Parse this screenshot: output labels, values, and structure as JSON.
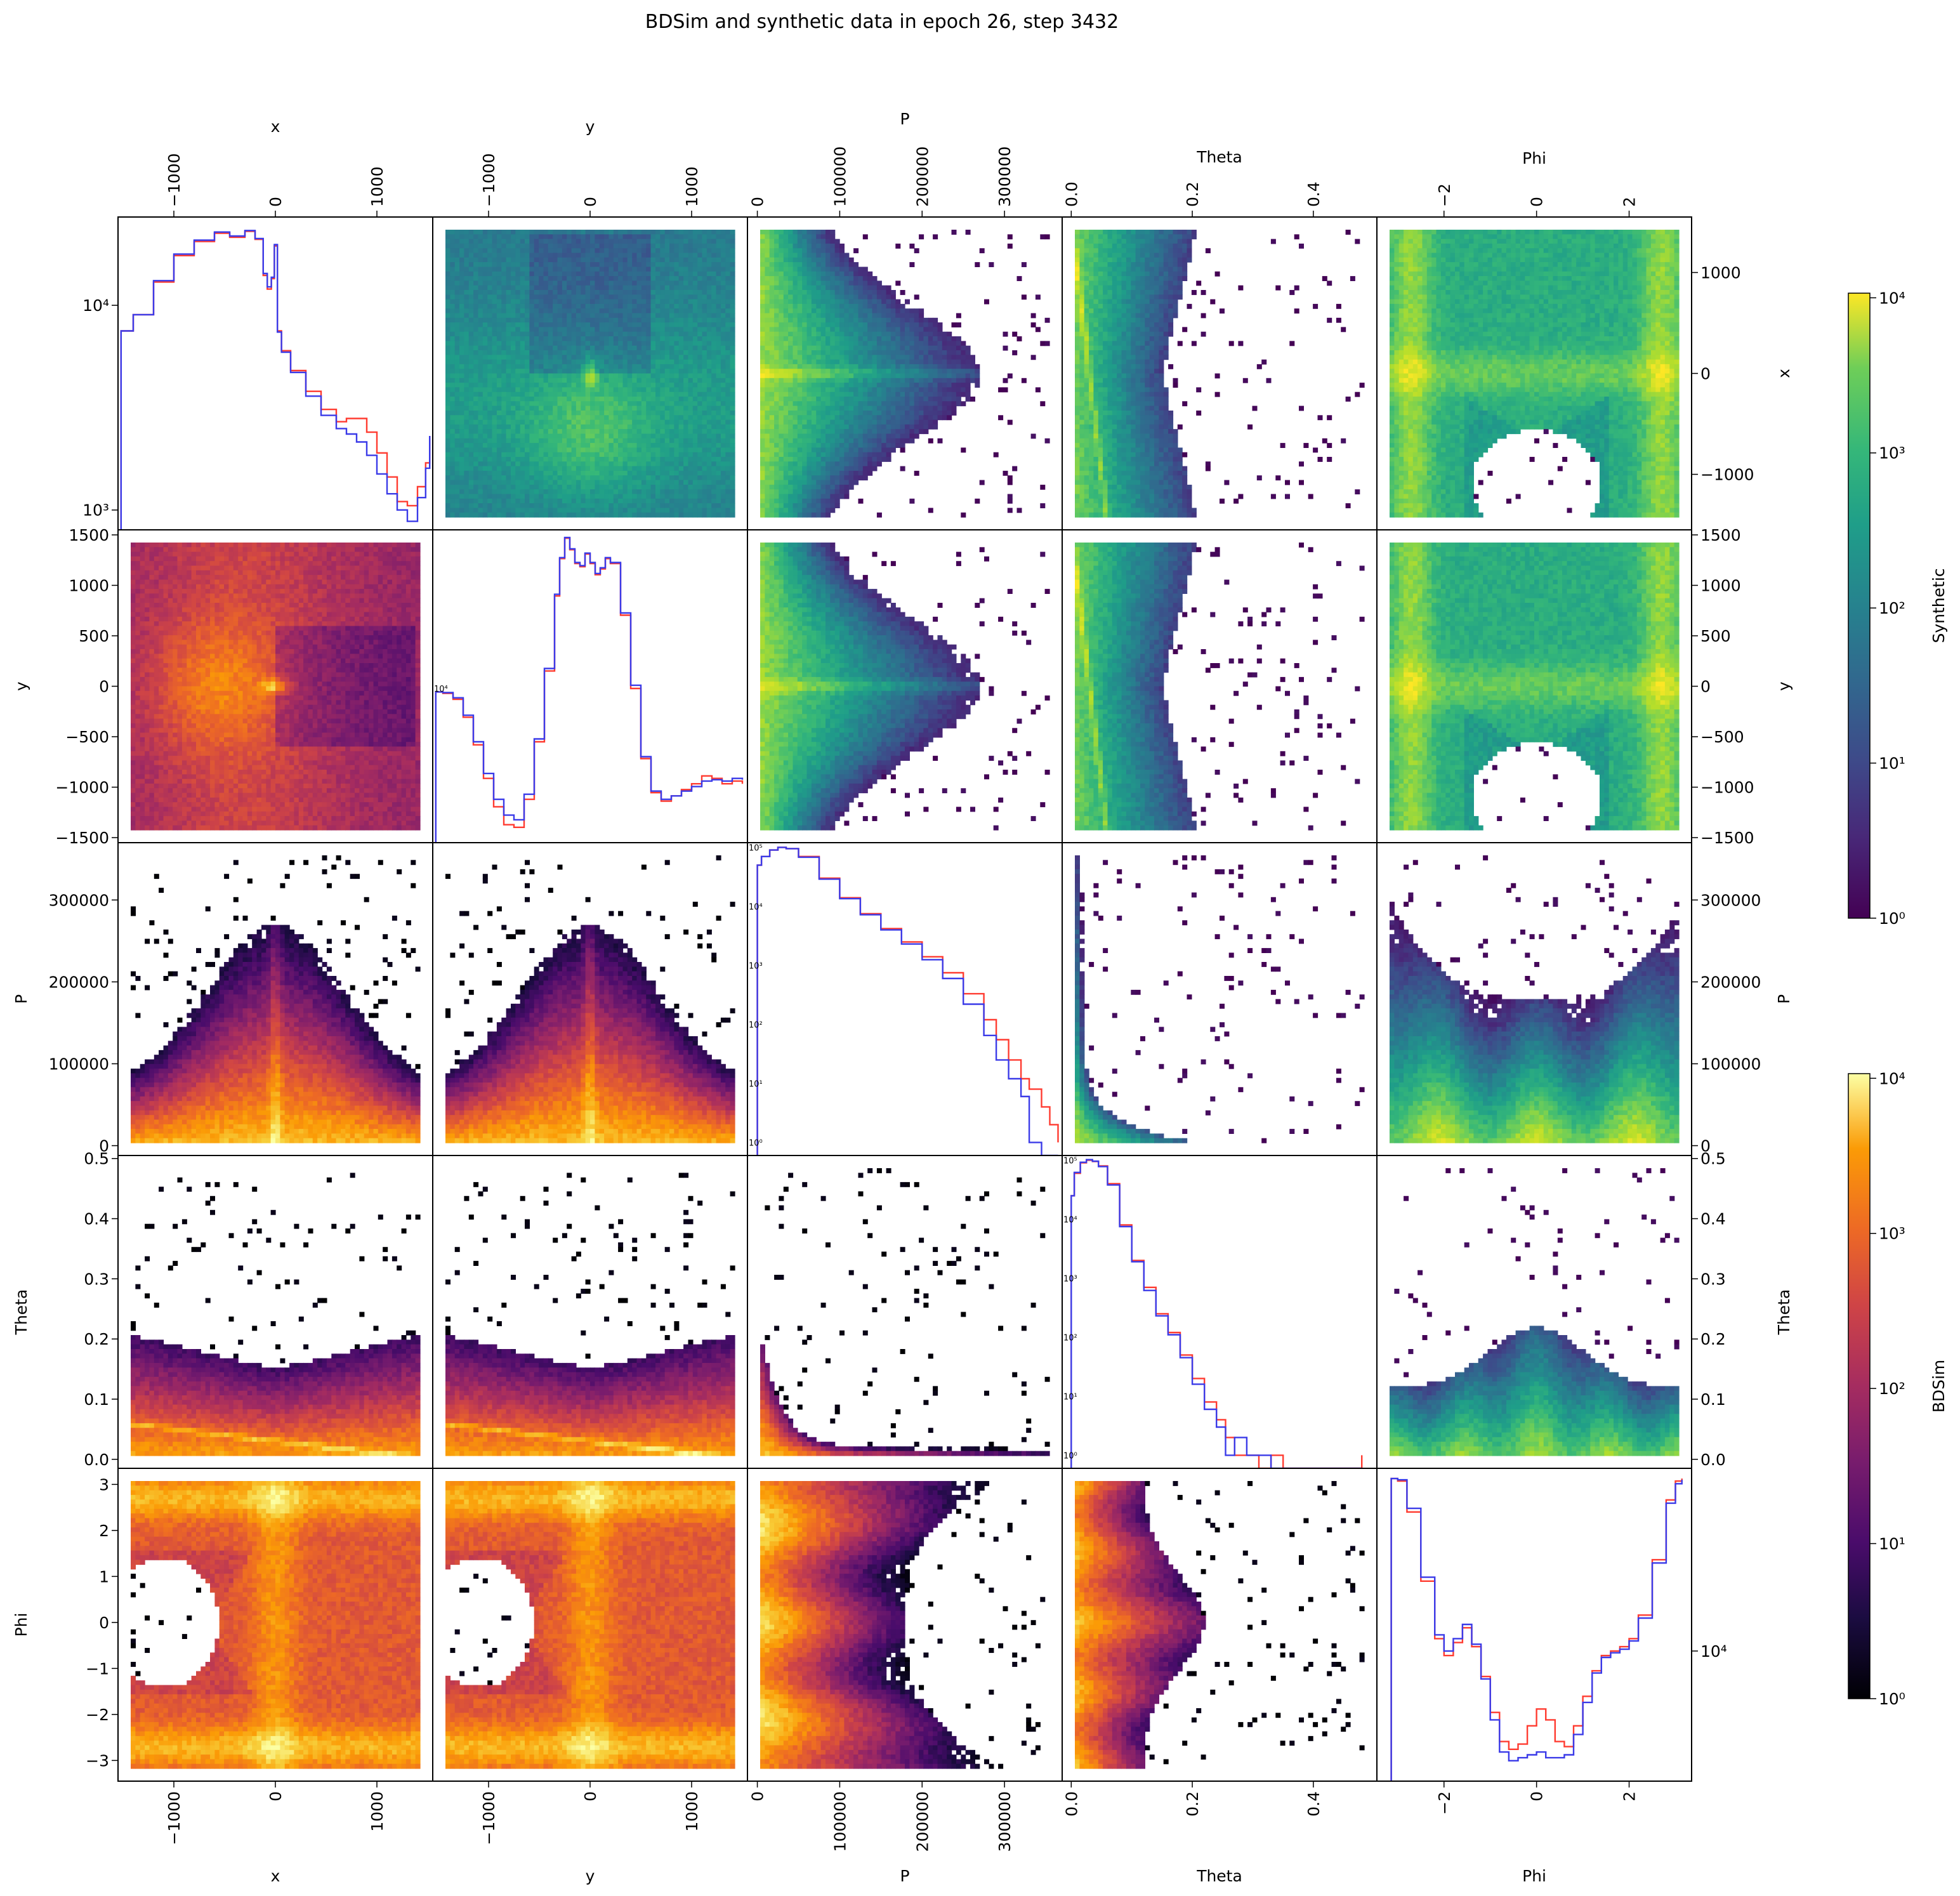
{
  "title": "BDSim and synthetic data in epoch 26, step 3432",
  "chart_data": {
    "type": "heatmap",
    "layout": "pair-plot",
    "variables": [
      "x",
      "y",
      "P",
      "Theta",
      "Phi"
    ],
    "axes": {
      "x": {
        "label": "x",
        "range": [
          -1550,
          1550
        ],
        "ticks": [
          -1000,
          0,
          1000
        ],
        "tick_labels": [
          "−1000",
          "0",
          "1000"
        ]
      },
      "y": {
        "label": "y",
        "range": [
          -1550,
          1550
        ],
        "ticks": [
          -1500,
          -1000,
          -500,
          0,
          500,
          1000,
          1500
        ],
        "tick_labels": [
          "−1500",
          "−1000",
          "−500",
          "0",
          "500",
          "1000",
          "1500"
        ],
        "col_ticks": [
          -1000,
          0,
          1000
        ],
        "col_tick_labels": [
          "−1000",
          "0",
          "1000"
        ]
      },
      "P": {
        "label": "P",
        "range": [
          -12000,
          370000
        ],
        "ticks": [
          0,
          100000,
          200000,
          300000
        ],
        "tick_labels": [
          "0",
          "100000",
          "200000",
          "300000"
        ]
      },
      "Theta": {
        "label": "Theta",
        "range": [
          -0.015,
          0.505
        ],
        "ticks": [
          0.0,
          0.1,
          0.2,
          0.3,
          0.4,
          0.5
        ],
        "tick_labels": [
          "0.0",
          "0.1",
          "0.2",
          "0.3",
          "0.4",
          "0.5"
        ],
        "col_ticks": [
          0.0,
          0.2,
          0.4
        ],
        "col_tick_labels": [
          "0.0",
          "0.2",
          "0.4"
        ]
      },
      "Phi": {
        "label": "Phi",
        "range": [
          -3.45,
          3.35
        ],
        "ticks": [
          -3,
          -2,
          -1,
          0,
          1,
          2,
          3
        ],
        "tick_labels": [
          "−3",
          "−2",
          "−1",
          "0",
          "1",
          "2",
          "3"
        ],
        "col_ticks": [
          -2,
          0,
          2
        ],
        "col_tick_labels": [
          "−2",
          "0",
          "2"
        ]
      }
    },
    "upper_triangle": "Synthetic",
    "lower_triangle": "BDSim",
    "colorbars": [
      {
        "label": "Synthetic",
        "colormap": "viridis",
        "scale": "log",
        "range": [
          1,
          10000
        ],
        "tick_labels": [
          "10⁰",
          "10¹",
          "10²",
          "10³",
          "10⁴"
        ]
      },
      {
        "label": "BDSim",
        "colormap": "inferno",
        "scale": "log",
        "range": [
          1,
          10000
        ],
        "tick_labels": [
          "10⁰",
          "10¹",
          "10²",
          "10³",
          "10⁴"
        ]
      }
    ],
    "histogram_colors": {
      "BDSim": "#ff3b30",
      "Synthetic": "#3a3ae8"
    },
    "diagonal": [
      {
        "var": "x",
        "yscale": "log",
        "ylim": [
          800,
          27000
        ],
        "ytick_labels": [
          "10³",
          "10⁴"
        ],
        "x": [
          -1520,
          -1400,
          -1200,
          -1000,
          -800,
          -600,
          -450,
          -300,
          -200,
          -120,
          -80,
          -40,
          -10,
          20,
          60,
          150,
          300,
          450,
          600,
          700,
          800,
          900,
          1000,
          1100,
          1200,
          1300,
          1400,
          1480,
          1520
        ],
        "bdsim": [
          7500,
          9000,
          13000,
          17500,
          20500,
          22500,
          21500,
          23000,
          21000,
          14000,
          12000,
          13500,
          19500,
          7500,
          6000,
          4800,
          3800,
          3100,
          2700,
          2800,
          2800,
          2400,
          1900,
          1450,
          1100,
          1050,
          1300,
          1700,
          2300
        ],
        "synthetic": [
          7500,
          9000,
          13200,
          17800,
          20800,
          22800,
          21800,
          23200,
          21200,
          14300,
          12300,
          13700,
          19800,
          7400,
          5900,
          4700,
          3600,
          2900,
          2500,
          2350,
          2150,
          1850,
          1500,
          1200,
          1000,
          880,
          1150,
          1600,
          2300
        ]
      },
      {
        "var": "y",
        "yscale": "log",
        "ytick_labels": [
          "10⁴"
        ],
        "x": [
          -1520,
          -1450,
          -1350,
          -1250,
          -1150,
          -1050,
          -950,
          -850,
          -750,
          -650,
          -550,
          -450,
          -350,
          -300,
          -250,
          -200,
          -150,
          -100,
          -50,
          0,
          50,
          100,
          150,
          200,
          300,
          400,
          500,
          600,
          700,
          800,
          900,
          1000,
          1100,
          1200,
          1300,
          1400,
          1500
        ],
        "bdsim": [
          9500,
          9300,
          8500,
          6500,
          4300,
          2600,
          1700,
          1300,
          1250,
          1900,
          4500,
          13000,
          40000,
          70000,
          95000,
          80000,
          65000,
          62000,
          75000,
          65000,
          55000,
          60000,
          70000,
          65000,
          30000,
          10000,
          3500,
          2100,
          1850,
          2000,
          2200,
          2400,
          2700,
          2600,
          2400,
          2500,
          2400
        ],
        "synthetic": [
          9500,
          9400,
          8700,
          6700,
          4500,
          2800,
          1900,
          1500,
          1400,
          2050,
          4700,
          13500,
          41000,
          71000,
          96000,
          81000,
          66000,
          63000,
          76000,
          66000,
          56000,
          61000,
          71000,
          66000,
          31000,
          10500,
          3600,
          2150,
          1900,
          2000,
          2150,
          2300,
          2500,
          2550,
          2500,
          2600,
          2550
        ]
      },
      {
        "var": "P",
        "yscale": "log",
        "ylim": [
          0.6,
          120000
        ],
        "ytick_labels": [
          "10⁰",
          "10¹",
          "10²",
          "10³",
          "10⁴",
          "10⁵"
        ],
        "x": [
          0,
          5000,
          15000,
          25000,
          35000,
          50000,
          75000,
          100000,
          125000,
          150000,
          175000,
          200000,
          225000,
          250000,
          275000,
          290000,
          305000,
          320000,
          330000,
          345000,
          355000,
          365000
        ],
        "bdsim": [
          50000,
          70000,
          90000,
          100000,
          95000,
          70000,
          30000,
          14000,
          7500,
          4200,
          2500,
          1400,
          750,
          330,
          120,
          55,
          25,
          12,
          8,
          4,
          2,
          1
        ],
        "synthetic": [
          50000,
          70000,
          90000,
          100000,
          95000,
          68000,
          29000,
          13500,
          7200,
          4000,
          2300,
          1250,
          600,
          220,
          65,
          25,
          12,
          6,
          1,
          0,
          0,
          0
        ]
      },
      {
        "var": "Theta",
        "yscale": "log",
        "ylim": [
          0.6,
          120000
        ],
        "ytick_labels": [
          "10⁰",
          "10¹",
          "10²",
          "10³",
          "10⁴",
          "10⁵"
        ],
        "x": [
          0.0,
          0.005,
          0.015,
          0.025,
          0.035,
          0.045,
          0.06,
          0.08,
          0.1,
          0.12,
          0.14,
          0.16,
          0.18,
          0.2,
          0.22,
          0.24,
          0.255,
          0.27,
          0.29,
          0.31,
          0.33,
          0.35,
          0.4,
          0.45,
          0.48
        ],
        "bdsim": [
          25000,
          60000,
          90000,
          100000,
          95000,
          80000,
          40000,
          8000,
          2000,
          700,
          250,
          120,
          50,
          20,
          8,
          4,
          2,
          1,
          1,
          0,
          1,
          0,
          0,
          0,
          1
        ],
        "synthetic": [
          25000,
          62000,
          92000,
          102000,
          96000,
          78000,
          38000,
          7500,
          1900,
          620,
          230,
          110,
          45,
          16,
          6,
          3,
          1,
          2,
          1,
          1,
          0,
          0,
          0,
          0,
          0
        ]
      },
      {
        "var": "Phi",
        "yscale": "log",
        "ytick_labels": [
          "10⁴"
        ],
        "x": [
          -3.14,
          -3.0,
          -2.8,
          -2.5,
          -2.2,
          -2.0,
          -1.8,
          -1.6,
          -1.4,
          -1.2,
          -1.0,
          -0.8,
          -0.6,
          -0.4,
          -0.2,
          0.0,
          0.2,
          0.4,
          0.6,
          0.8,
          1.0,
          1.2,
          1.4,
          1.6,
          1.8,
          2.0,
          2.2,
          2.5,
          2.8,
          3.0,
          3.14
        ],
        "bdsim": [
          70000,
          68000,
          48000,
          22000,
          11500,
          9500,
          11000,
          13000,
          10500,
          7500,
          5000,
          3600,
          3300,
          3500,
          4300,
          5200,
          4600,
          3600,
          3400,
          4300,
          6000,
          8000,
          9500,
          10000,
          10500,
          11500,
          15000,
          28000,
          55000,
          68000,
          70000
        ],
        "synthetic": [
          70000,
          69000,
          50000,
          23000,
          12000,
          10000,
          11500,
          13500,
          10800,
          7300,
          4600,
          3200,
          2900,
          3000,
          3100,
          3200,
          3000,
          3000,
          3100,
          3900,
          5600,
          7800,
          9300,
          9800,
          10200,
          11200,
          14500,
          27000,
          53000,
          66000,
          69000
        ]
      }
    ],
    "panel_labels": {
      "row_labels": [
        "x",
        "y",
        "P",
        "Theta",
        "Phi"
      ],
      "col_labels": [
        "x",
        "y",
        "P",
        "Theta",
        "Phi"
      ]
    }
  }
}
